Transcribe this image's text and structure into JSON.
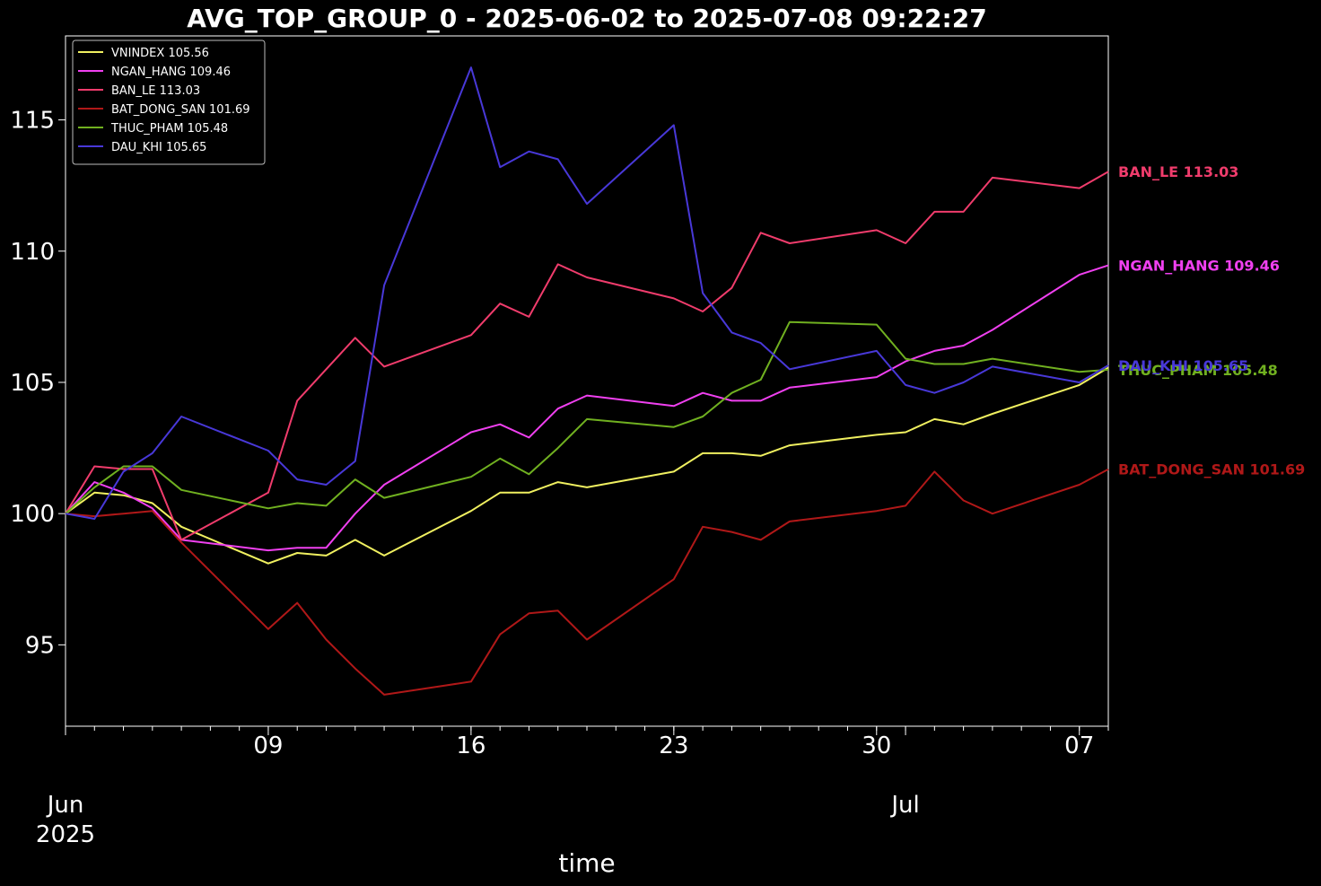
{
  "chart_data": {
    "type": "line",
    "title": "AVG_TOP_GROUP_0 - 2025-06-02 to 2025-07-08 09:22:27",
    "xlabel": "time",
    "ylabel": "",
    "ylim": [
      91.9,
      118.2
    ],
    "xlim": [
      "2025-06-02",
      "2025-07-08"
    ],
    "yticks": [
      95,
      100,
      105,
      110,
      115
    ],
    "x_day_ticks": [
      {
        "date": "2025-06-09",
        "label": "09"
      },
      {
        "date": "2025-06-16",
        "label": "16"
      },
      {
        "date": "2025-06-23",
        "label": "23"
      },
      {
        "date": "2025-06-30",
        "label": "30"
      },
      {
        "date": "2025-07-07",
        "label": "07"
      }
    ],
    "x_month_ticks": [
      {
        "date": "2025-06-02",
        "label": "Jun",
        "sublabel": "2025"
      },
      {
        "date": "2025-07-01",
        "label": "Jul",
        "sublabel": ""
      }
    ],
    "grid": false,
    "legend_position": "top-left",
    "x": [
      "2025-06-02",
      "2025-06-03",
      "2025-06-04",
      "2025-06-05",
      "2025-06-06",
      "2025-06-09",
      "2025-06-10",
      "2025-06-11",
      "2025-06-12",
      "2025-06-13",
      "2025-06-16",
      "2025-06-17",
      "2025-06-18",
      "2025-06-19",
      "2025-06-20",
      "2025-06-23",
      "2025-06-24",
      "2025-06-25",
      "2025-06-26",
      "2025-06-27",
      "2025-06-30",
      "2025-07-01",
      "2025-07-02",
      "2025-07-03",
      "2025-07-04",
      "2025-07-07",
      "2025-07-08"
    ],
    "series": [
      {
        "name": "VNINDEX",
        "legend": "VNINDEX 105.56",
        "end_label": "VNINDEX 105.56",
        "show_end_label": false,
        "color": "#f0f060",
        "values": [
          100.0,
          100.8,
          100.7,
          100.4,
          99.5,
          98.1,
          98.5,
          98.4,
          99.0,
          98.4,
          100.1,
          100.8,
          100.8,
          101.2,
          101.0,
          101.6,
          102.3,
          102.3,
          102.2,
          102.6,
          103.0,
          103.1,
          103.6,
          103.4,
          103.8,
          104.9,
          105.56
        ]
      },
      {
        "name": "NGAN_HANG",
        "legend": "NGAN_HANG 109.46",
        "end_label": "NGAN_HANG 109.46",
        "show_end_label": true,
        "color": "#f040f0",
        "values": [
          100.0,
          101.2,
          100.8,
          100.2,
          99.0,
          98.6,
          98.7,
          98.7,
          100.0,
          101.1,
          103.1,
          103.4,
          102.9,
          104.0,
          104.5,
          104.1,
          104.6,
          104.3,
          104.3,
          104.8,
          105.2,
          105.8,
          106.2,
          106.4,
          107.0,
          109.1,
          109.46
        ]
      },
      {
        "name": "BAN_LE",
        "legend": "BAN_LE 113.03",
        "end_label": "BAN_LE 113.03",
        "show_end_label": true,
        "color": "#f03c6c",
        "values": [
          100.0,
          101.8,
          101.7,
          101.7,
          99.0,
          100.8,
          104.3,
          105.5,
          106.7,
          105.6,
          106.8,
          108.0,
          107.5,
          109.5,
          109.0,
          108.2,
          107.7,
          108.6,
          110.7,
          110.3,
          110.8,
          110.3,
          111.5,
          111.5,
          112.8,
          112.4,
          113.03
        ]
      },
      {
        "name": "BAT_DONG_SAN",
        "legend": "BAT_DONG_SAN 101.69",
        "end_label": "BAT_DONG_SAN 101.69",
        "show_end_label": true,
        "color": "#b01818",
        "values": [
          100.0,
          99.9,
          100.0,
          100.1,
          98.9,
          95.6,
          96.6,
          95.2,
          94.1,
          93.1,
          93.6,
          95.4,
          96.2,
          96.3,
          95.2,
          97.5,
          99.5,
          99.3,
          99.0,
          99.7,
          100.1,
          100.3,
          101.6,
          100.5,
          100.0,
          101.1,
          101.69
        ]
      },
      {
        "name": "THUC_PHAM",
        "legend": "THUC_PHAM 105.48",
        "end_label": "THUC_PHAM 105.48",
        "show_end_label": true,
        "color": "#70b020",
        "values": [
          100.0,
          101.0,
          101.8,
          101.8,
          100.9,
          100.2,
          100.4,
          100.3,
          101.3,
          100.6,
          101.4,
          102.1,
          101.5,
          102.5,
          103.6,
          103.3,
          103.7,
          104.6,
          105.1,
          107.3,
          107.2,
          105.9,
          105.7,
          105.7,
          105.9,
          105.4,
          105.48
        ]
      },
      {
        "name": "DAU_KHI",
        "legend": "DAU_KHI 105.65",
        "end_label": "DAU_KHI 105.65",
        "show_end_label": true,
        "color": "#4838d8",
        "values": [
          100.0,
          99.8,
          101.6,
          102.3,
          103.7,
          102.4,
          101.3,
          101.1,
          102.0,
          108.7,
          117.0,
          113.2,
          113.8,
          113.5,
          111.8,
          114.8,
          108.4,
          106.9,
          106.5,
          105.5,
          106.2,
          104.9,
          104.6,
          105.0,
          105.6,
          105.0,
          105.65
        ]
      }
    ]
  }
}
